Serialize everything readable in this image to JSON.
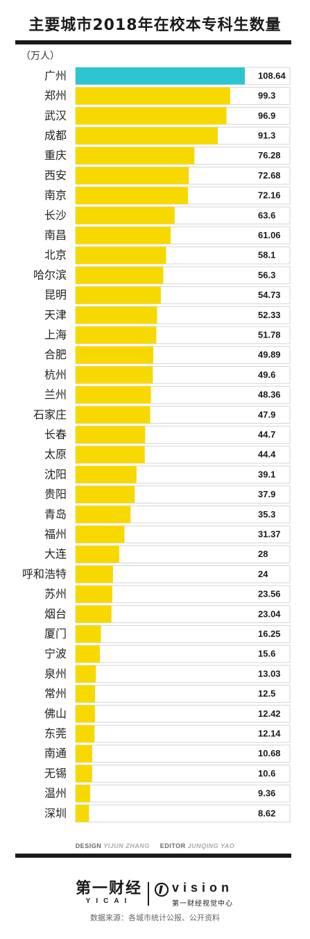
{
  "header": {
    "title": "主要城市2018年在校本专科生数量",
    "unit": "（万人）"
  },
  "credits": {
    "design_role": "DESIGN",
    "design_name": "YIJUN ZHANG",
    "editor_role": "EDITOR",
    "editor_name": "JUNQING YAO"
  },
  "logos": {
    "yicai_cn": "第一财经",
    "yicai_en": "YICAI",
    "vision_en": "vision",
    "vision_cn": "第一财经视觉中心"
  },
  "source": "数据来源：各城市统计公报、公开资料",
  "colors": {
    "highlight": "#2ec5d3",
    "bar": "#f7d900",
    "title": "#1a1a1a",
    "row_border": "#d4d4d4"
  },
  "chart_data": {
    "type": "bar",
    "orientation": "horizontal",
    "title": "主要城市2018年在校本专科生数量",
    "unit": "（万人）",
    "highlight": "广州",
    "categories": [
      "广州",
      "郑州",
      "武汉",
      "成都",
      "重庆",
      "西安",
      "南京",
      "长沙",
      "南昌",
      "北京",
      "哈尔滨",
      "昆明",
      "天津",
      "上海",
      "合肥",
      "杭州",
      "兰州",
      "石家庄",
      "长春",
      "太原",
      "沈阳",
      "贵阳",
      "青岛",
      "福州",
      "大连",
      "呼和浩特",
      "苏州",
      "烟台",
      "厦门",
      "宁波",
      "泉州",
      "常州",
      "佛山",
      "东莞",
      "南通",
      "无锡",
      "温州",
      "深圳"
    ],
    "values": [
      108.64,
      99.3,
      96.9,
      91.3,
      76.28,
      72.68,
      72.16,
      63.6,
      61.06,
      58.1,
      56.3,
      54.73,
      52.33,
      51.78,
      49.89,
      49.6,
      48.36,
      47.9,
      44.7,
      44.4,
      39.1,
      37.9,
      35.3,
      31.37,
      28,
      24,
      23.56,
      23.04,
      16.25,
      15.6,
      13.03,
      12.5,
      12.42,
      12.14,
      10.68,
      10.6,
      9.36,
      8.62
    ],
    "value_labels": [
      "108.64",
      "99.3",
      "96.9",
      "91.3",
      "76.28",
      "72.68",
      "72.16",
      "63.6",
      "61.06",
      "58.1",
      "56.3",
      "54.73",
      "52.33",
      "51.78",
      "49.89",
      "49.6",
      "48.36",
      "47.9",
      "44.7",
      "44.4",
      "39.1",
      "37.9",
      "35.3",
      "31.37",
      "28",
      "24",
      "23.56",
      "23.04",
      "16.25",
      "15.6",
      "13.03",
      "12.5",
      "12.42",
      "12.14",
      "10.68",
      "10.6",
      "9.36",
      "8.62"
    ],
    "xlim": [
      0,
      108.64
    ],
    "grid": false,
    "legend": "none"
  }
}
